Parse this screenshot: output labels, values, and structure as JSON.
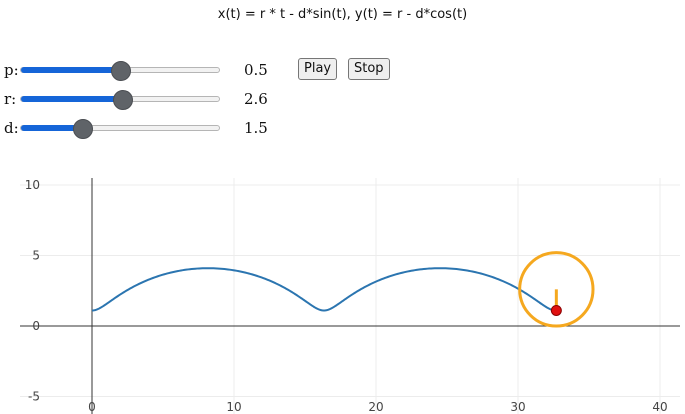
{
  "formula": "x(t) = r * t - d*sin(t), y(t) = r - d*cos(t)",
  "controls": {
    "sliders": [
      {
        "name": "p",
        "label": "p:",
        "value": "0.5",
        "fraction": 0.5
      },
      {
        "name": "r",
        "label": "r:",
        "value": "2.6",
        "fraction": 0.51
      },
      {
        "name": "d",
        "label": "d:",
        "value": "1.5",
        "fraction": 0.31
      }
    ],
    "play_label": "Play",
    "stop_label": "Stop"
  },
  "chart_data": {
    "type": "line",
    "xlim": [
      -2.5,
      41.5
    ],
    "ylim": [
      -5,
      10
    ],
    "x_ticks": [
      0,
      10,
      20,
      30,
      40
    ],
    "y_ticks": [
      -5,
      0,
      5,
      10
    ],
    "grid": true,
    "curve": {
      "name": "",
      "equation": "x(t) = r * t - d*sin(t), y(t) = r - d*cos(t)",
      "r": 2.6,
      "d": 1.5,
      "t_range": [
        0,
        12.57
      ],
      "color": "#2b75b0"
    },
    "rolling_circle": {
      "center": [
        32.7,
        2.6
      ],
      "radius": 2.6,
      "color": "#f5a81f"
    },
    "arm": {
      "from": [
        32.7,
        2.6
      ],
      "to": [
        32.7,
        1.1
      ],
      "color": "#f5a81f"
    },
    "tracer_point": {
      "x": 32.7,
      "y": 1.1,
      "color": "#e01010"
    },
    "axis_color": "#333333",
    "grid_color": "#ececec"
  }
}
